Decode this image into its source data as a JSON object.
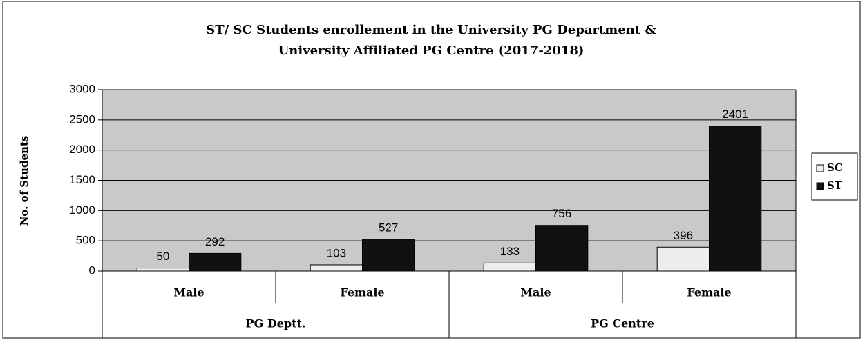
{
  "chart_data": {
    "type": "bar",
    "title": [
      "ST/ SC Students enrollement in the University PG Department &",
      "University Affiliated PG Centre (2017-2018)"
    ],
    "y_label": "No. of Students",
    "categories": [
      "Male",
      "Female",
      "Male",
      "Female"
    ],
    "groups": [
      "PG Deptt.",
      "PG Centre"
    ],
    "series": [
      {
        "name": "SC",
        "color": "#eeeeee",
        "values": [
          50,
          103,
          133,
          396
        ]
      },
      {
        "name": "ST",
        "color": "#111111",
        "values": [
          292,
          527,
          756,
          2401
        ]
      }
    ],
    "ylim": [
      0,
      3000
    ],
    "yticks": [
      0,
      500,
      1000,
      1500,
      2000,
      2500,
      3000
    ],
    "grid": true,
    "legend": "right"
  }
}
